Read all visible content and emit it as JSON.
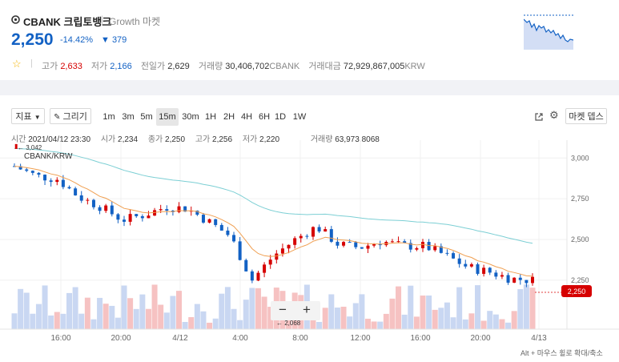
{
  "header": {
    "name": "CBANK 크립토뱅크",
    "subtitle": "Growth 마켓",
    "price": "2,250",
    "change_pct": "-14.42%",
    "change_amt": "▼ 379",
    "stats": [
      {
        "label": "고가",
        "value": "2,633",
        "tone": "red"
      },
      {
        "label": "저가",
        "value": "2,166",
        "tone": "blue"
      },
      {
        "label": "전일가",
        "value": "2,629",
        "tone": "plain"
      },
      {
        "label": "거래량",
        "value": "30,406,702",
        "unit": "CBANK",
        "tone": "plain"
      },
      {
        "label": "거래대금",
        "value": "72,929,867,005",
        "unit": "KRW",
        "tone": "plain"
      }
    ]
  },
  "toolbar": {
    "indicator_label": "지표",
    "draw_label": "그리기",
    "timeframes": [
      "1m",
      "3m",
      "5m",
      "15m",
      "30m",
      "1H",
      "2H",
      "4H",
      "6H",
      "1D",
      "1W"
    ],
    "active_timeframe": "15m",
    "market_depth_label": "마켓 뎁스"
  },
  "ohlc": {
    "time_label": "시간",
    "time": "2021/04/12 23:30",
    "open_label": "시가",
    "open": "2,234",
    "close_label": "종가",
    "close": "2,250",
    "high_label": "고가",
    "high": "2,256",
    "low_label": "저가",
    "low": "2,220",
    "volume_label": "거래량",
    "volume": "63,973.8068"
  },
  "chart": {
    "symbol": "CBANK/KRW",
    "high_marker": "3,042",
    "low_marker": "2,068",
    "last_price": "2,250",
    "hint": "Alt + 마우스 휠로 확대/축소",
    "zoom_out": "−",
    "zoom_in": "+",
    "colors": {
      "up": "#d60000",
      "down": "#1261c4",
      "ma_short": "#f0a052",
      "ma_long": "#7ccfd4",
      "vol_up": "#f6c2c2",
      "vol_down": "#c9d7f2"
    }
  },
  "chart_data": {
    "type": "candlestick",
    "y_ticks": [
      "3,000",
      "2,750",
      "2,500",
      "2,250"
    ],
    "ylim": [
      1950,
      3070
    ],
    "x_ticks": [
      "16:00",
      "20:00",
      "4/12",
      "4:00",
      "8:00",
      "12:00",
      "16:00",
      "20:00",
      "4/13"
    ],
    "series_sample_close": [
      2950,
      2890,
      2870,
      2760,
      2700,
      2620,
      2650,
      2700,
      2690,
      2610,
      2520,
      2250,
      2400,
      2500,
      2580,
      2470,
      2450,
      2490,
      2460,
      2460,
      2400,
      2330,
      2300,
      2260,
      2250
    ]
  },
  "mini_chart": {
    "label": "sparkline"
  }
}
